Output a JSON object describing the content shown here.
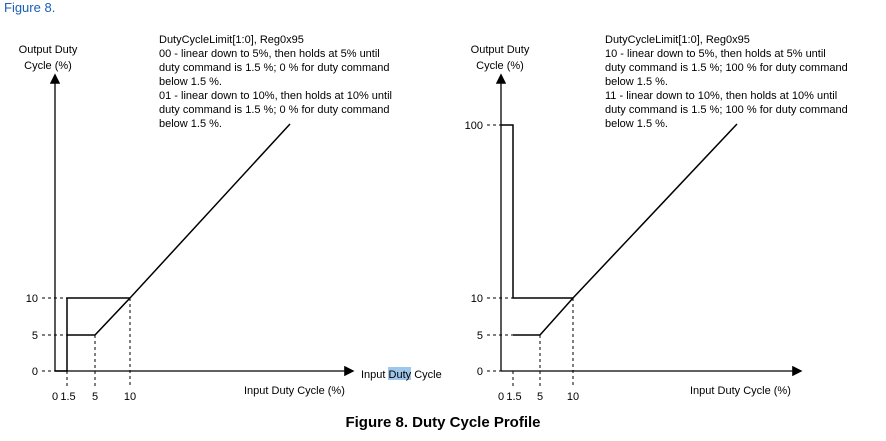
{
  "header": {
    "link_text": "Figure 8."
  },
  "left_chart": {
    "ylabel_lines": [
      "Output Duty",
      "Cycle (%)"
    ],
    "yticks": [
      "10",
      "5",
      "0"
    ],
    "xticks": [
      "0",
      "1.5",
      "5",
      "10"
    ],
    "xlabel": "Input Duty Cycle (%)",
    "inline_label_parts": [
      "Input ",
      "Duty",
      " Cycle"
    ],
    "description_lines": [
      "DutyCycleLimit[1:0], Reg0x95",
      "00 - linear down to 5%, then holds at 5% until",
      "duty command is 1.5 %; 0 % for duty command",
      "below 1.5 %.",
      "01 -  linear down to 10%, then holds at 10% until",
      "duty command is 1.5 %; 0 % for duty command",
      "below 1.5 %."
    ]
  },
  "right_chart": {
    "ylabel_lines": [
      "Output Duty",
      "Cycle (%)"
    ],
    "yticks": [
      "100",
      "10",
      "5",
      "0"
    ],
    "xticks": [
      "0",
      "1.5",
      "5",
      "10"
    ],
    "xlabel": "Input Duty Cycle (%)",
    "description_lines": [
      "DutyCycleLimit[1:0], Reg0x95",
      "10 - linear down to 5%, then holds at 5% until",
      "duty command is 1.5 %; 100 % for duty command",
      "below 1.5 %.",
      "11 -  linear down to 10%, then holds at 10% until",
      "duty command is 1.5 %; 100 % for duty command",
      "below 1.5 %."
    ]
  },
  "caption": "Figure 8.  Duty Cycle Profile"
}
